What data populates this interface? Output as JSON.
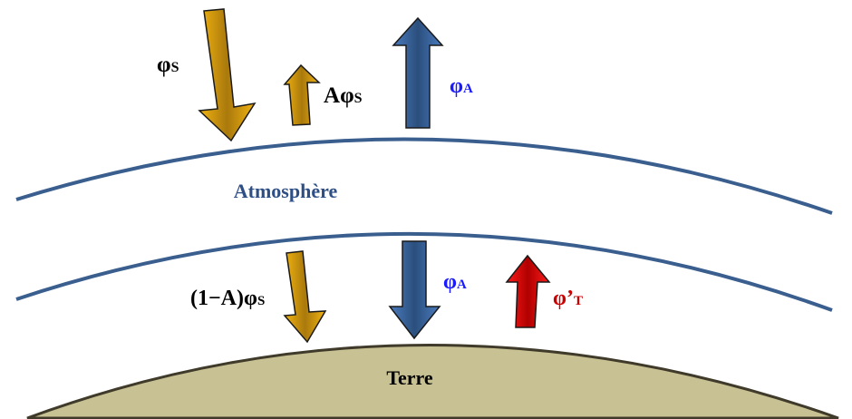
{
  "layers": {
    "atmosphere_label": "Atmosphère",
    "earth_label": "Terre"
  },
  "fluxes": {
    "solar": {
      "symbol": "φ",
      "sub": "S"
    },
    "reflected": {
      "prefix": "A",
      "symbol": "φ",
      "sub": "S"
    },
    "atmo_up": {
      "symbol": "φ",
      "sub": "A"
    },
    "absorbed": {
      "prefix": "(1−A)",
      "symbol": "φ",
      "sub": "S"
    },
    "atmo_down": {
      "symbol": "φ",
      "sub": "A"
    },
    "terrestrial": {
      "symbol": "φ’",
      "sub": "T"
    }
  },
  "colors": {
    "curve": "#3a5f8f",
    "label_atmosphere": "#2e4f85",
    "gold": "#e6a70f",
    "blue": "#3c6aa6",
    "red": "#e80000",
    "earth": "#c8c193",
    "earth_edge": "#3f3a2a",
    "text_black": "#000000",
    "text_blue": "#1a1aff",
    "text_red": "#cc0000"
  }
}
